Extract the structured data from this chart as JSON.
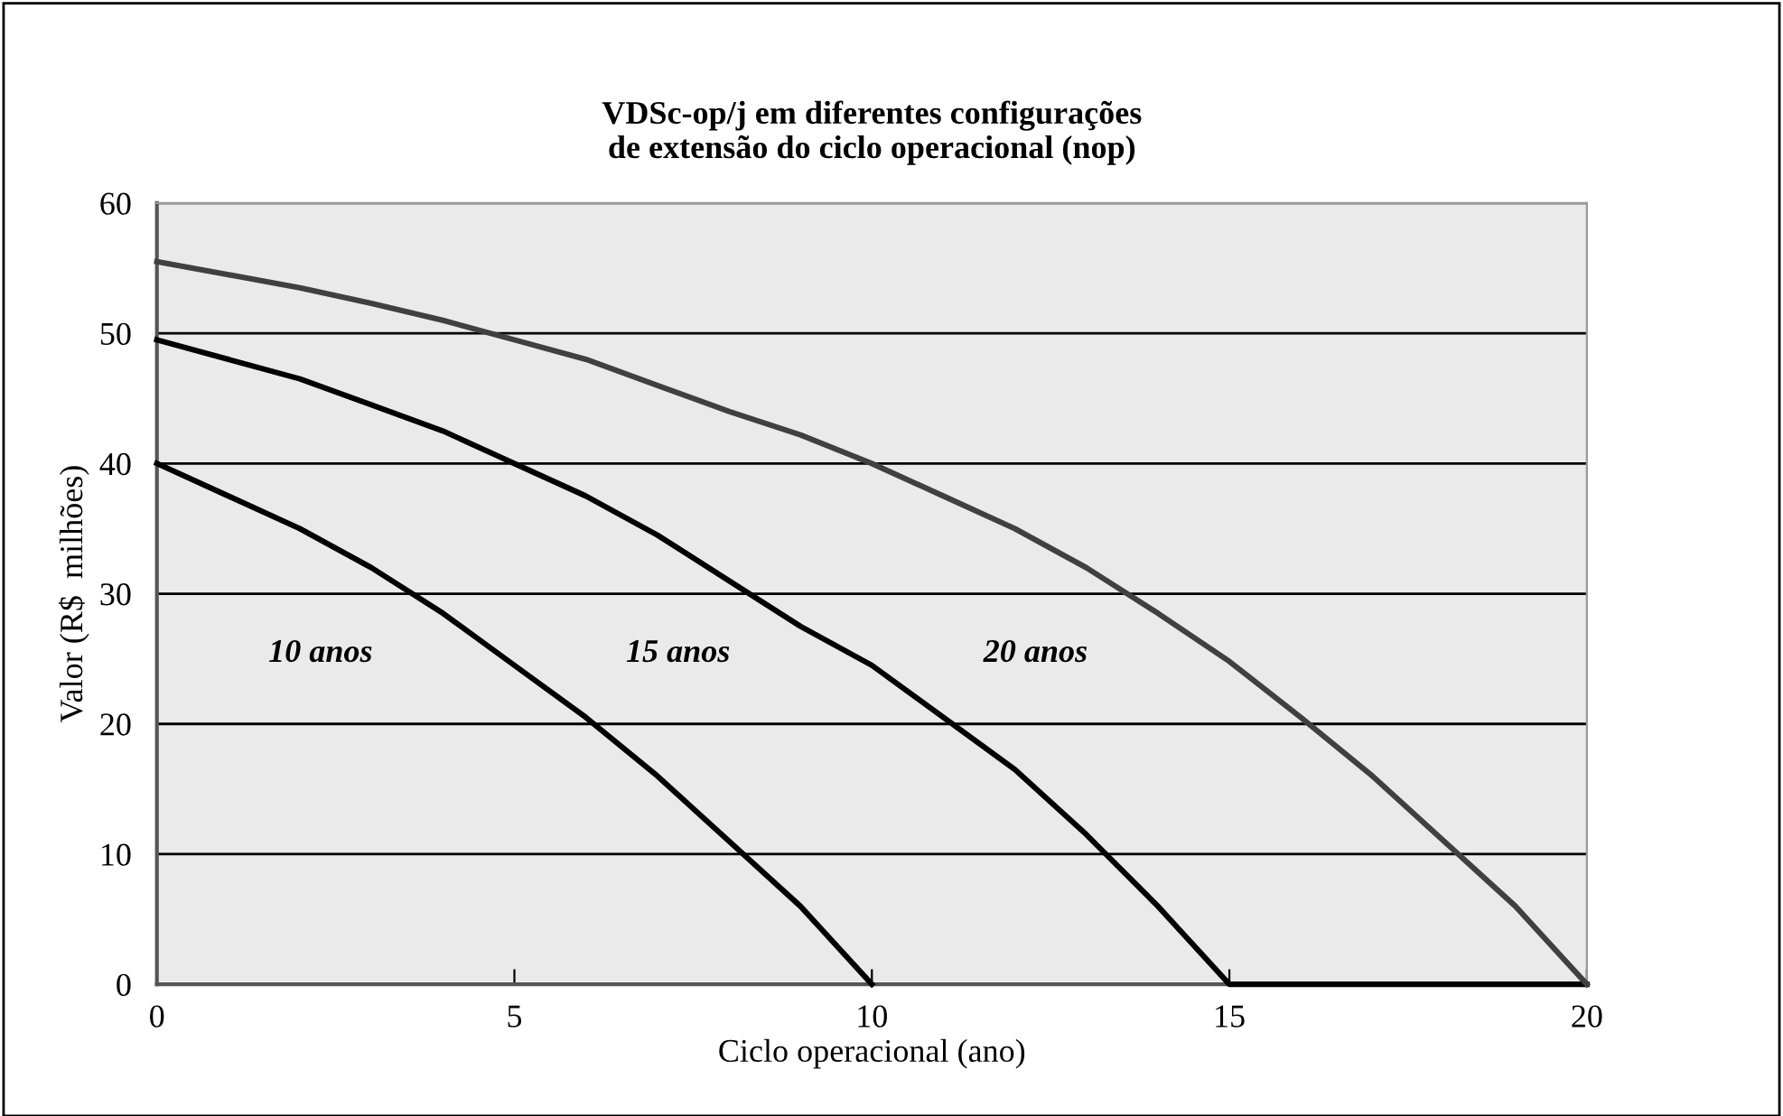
{
  "chart_data": {
    "type": "line",
    "title": "VDSc-op/j em diferentes configurações\nde extensão do ciclo operacional (nop)",
    "xlabel": "Ciclo operacional (ano)",
    "ylabel": "Valor (R$  milhões)",
    "xlim": [
      0,
      20
    ],
    "xticks": [
      0,
      5,
      10,
      15,
      20
    ],
    "ylim": [
      0,
      60
    ],
    "yticks": [
      0,
      10,
      20,
      30,
      40,
      50,
      60
    ],
    "grid": "y",
    "legend": false,
    "marker": "none",
    "line_style": "solid",
    "series": [
      {
        "name": "10 anos",
        "color": "#000000",
        "x": [
          0,
          1,
          2,
          3,
          4,
          5,
          6,
          7,
          8,
          9,
          10
        ],
        "values": [
          40,
          37.5,
          35,
          32,
          28.5,
          24.5,
          20.5,
          16,
          11,
          6,
          0
        ]
      },
      {
        "name": "15 anos",
        "color": "#000000",
        "x": [
          0,
          1,
          2,
          3,
          4,
          5,
          6,
          7,
          8,
          9,
          10,
          11,
          12,
          13,
          14,
          15,
          16,
          17,
          18,
          19,
          20
        ],
        "values": [
          49.5,
          48,
          46.5,
          44.5,
          42.5,
          40,
          37.5,
          34.5,
          31,
          27.5,
          24.5,
          20.5,
          16.5,
          11.5,
          6,
          0,
          0,
          0,
          0,
          0,
          0
        ]
      },
      {
        "name": "20 anos",
        "color": "#404040",
        "x": [
          0,
          1,
          2,
          3,
          4,
          5,
          6,
          7,
          8,
          9,
          10,
          11,
          12,
          13,
          14,
          15,
          16,
          17,
          18,
          19,
          20
        ],
        "values": [
          55.5,
          54.5,
          53.5,
          52.3,
          51,
          49.5,
          48,
          46,
          44,
          42.2,
          40,
          37.5,
          35,
          32,
          28.5,
          24.8,
          20.5,
          16,
          11,
          6,
          0
        ]
      }
    ]
  }
}
